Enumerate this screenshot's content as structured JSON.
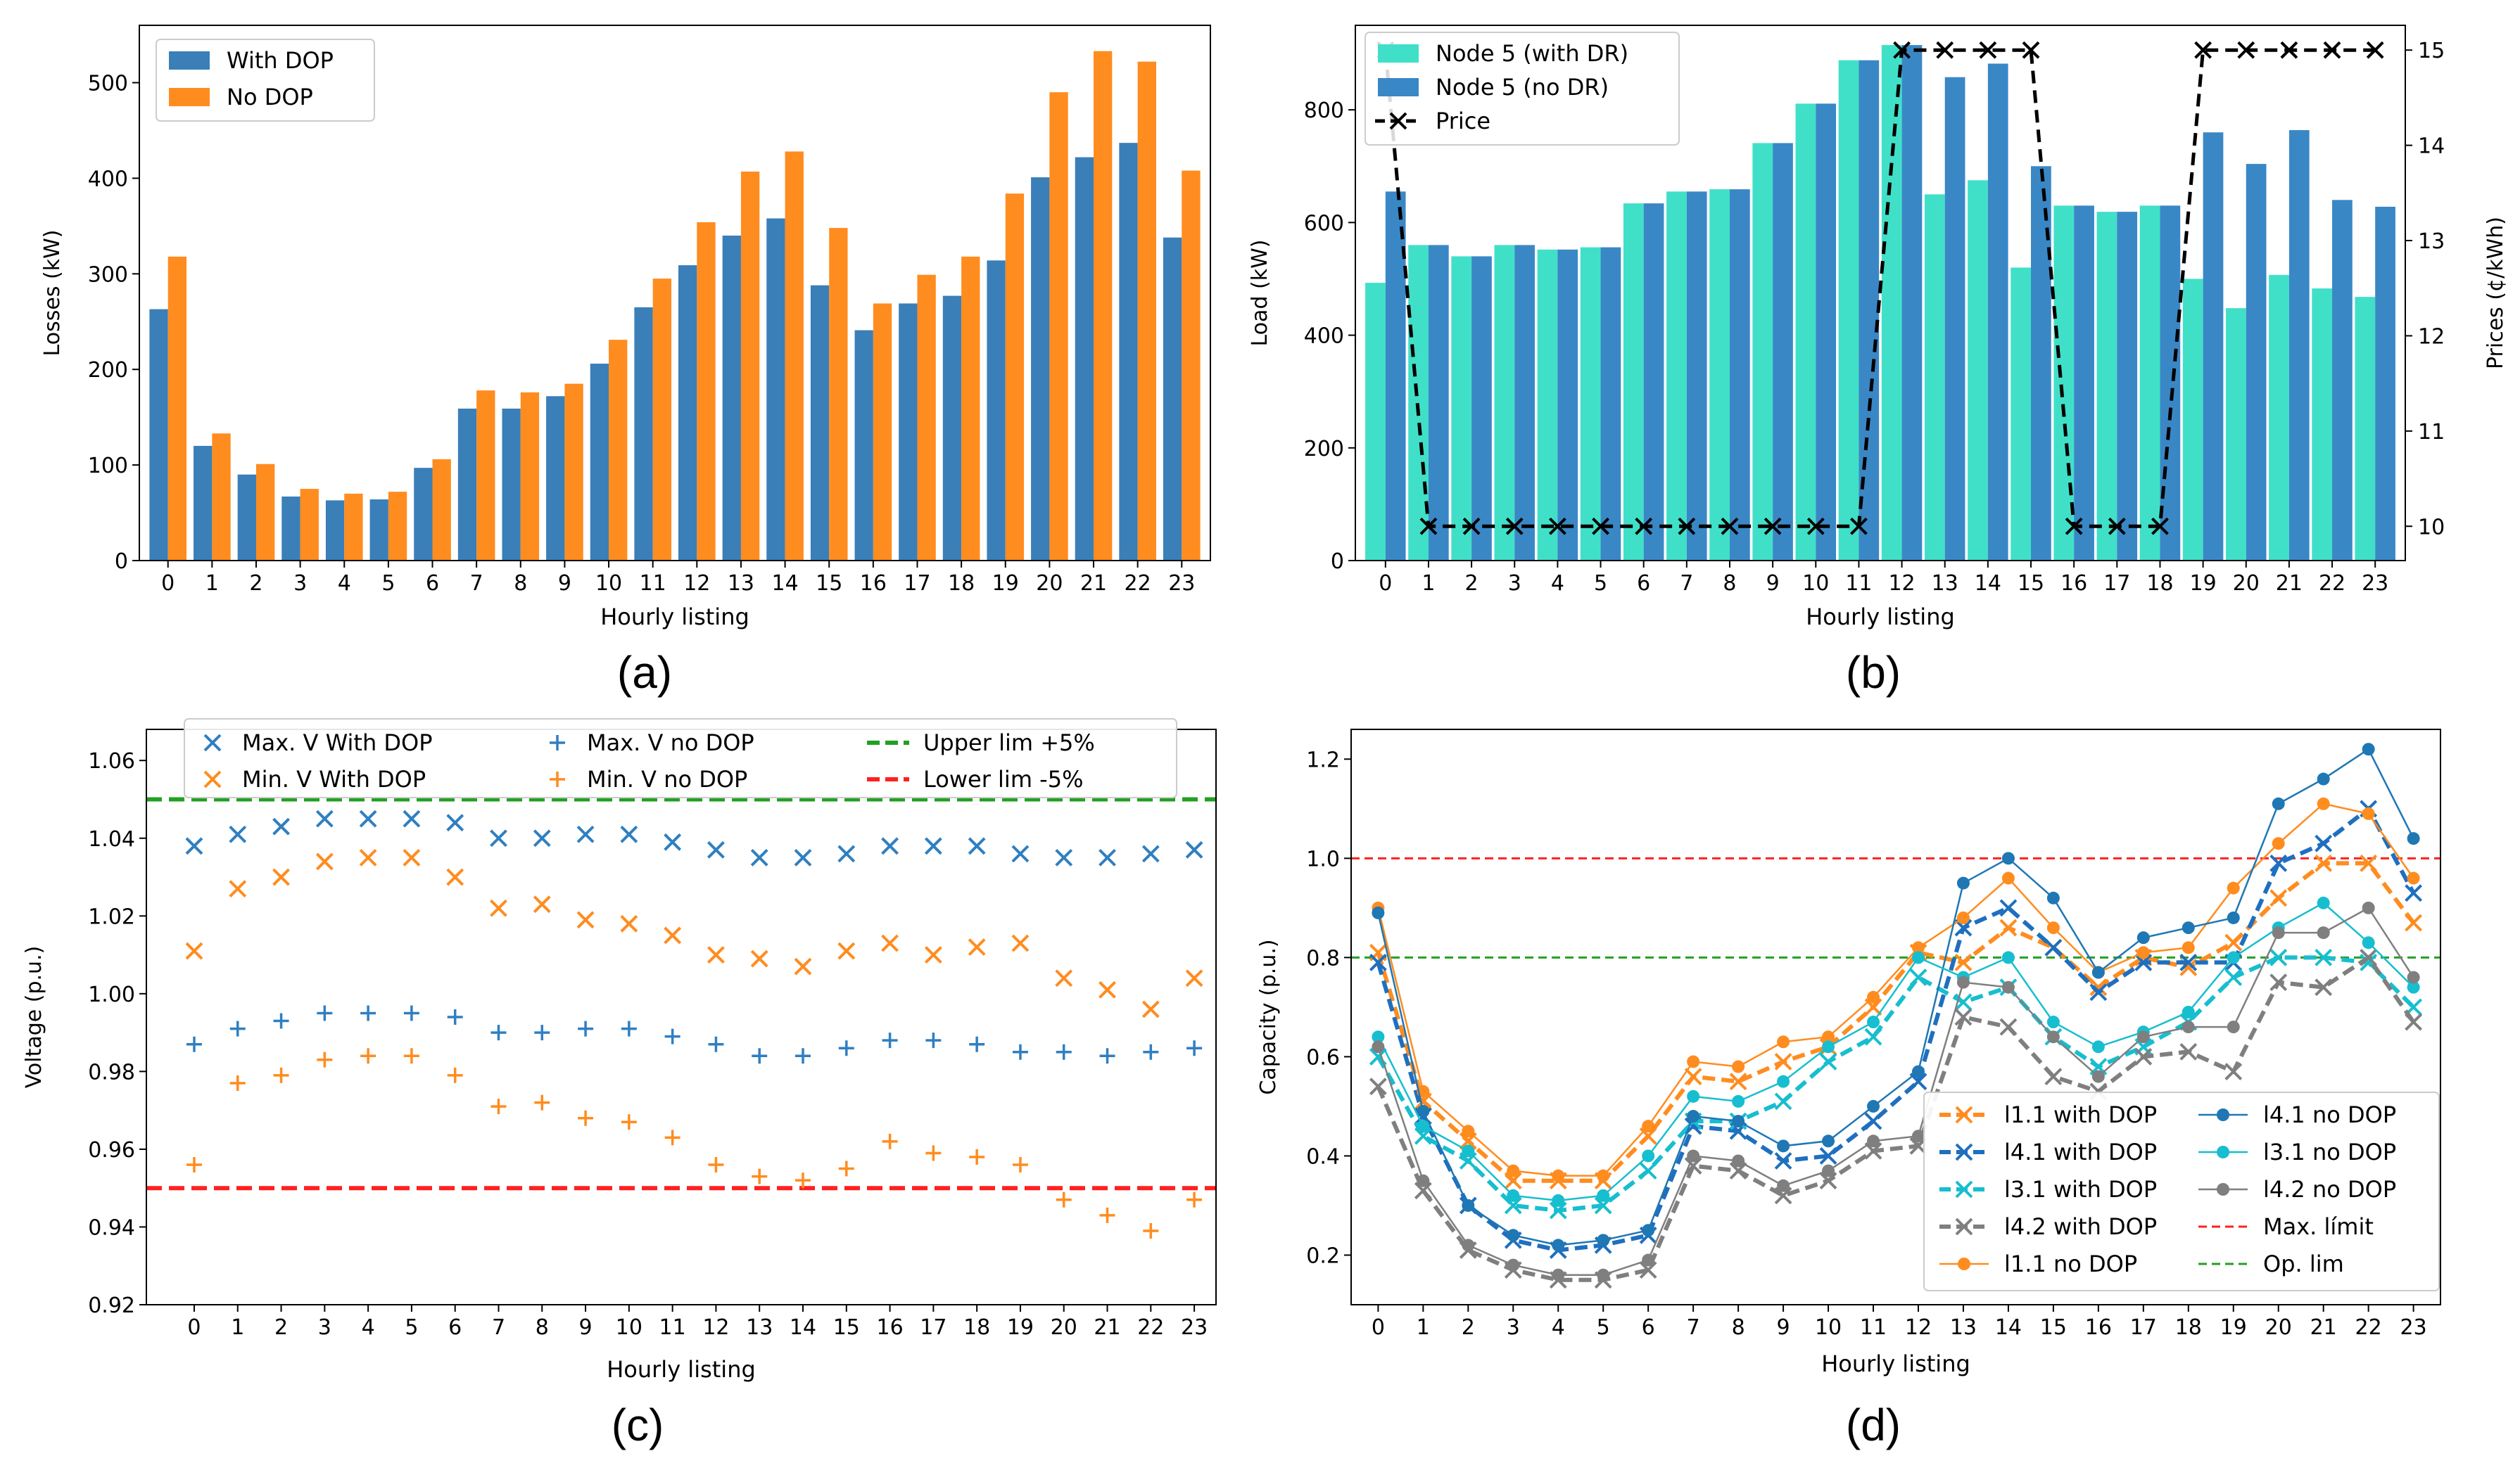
{
  "chart_data": [
    {
      "panel": "a",
      "caption": "(a)",
      "type": "bar",
      "xlabel": "Hourly listing",
      "ylabel": "Losses (kW)",
      "categories": [
        "0",
        "1",
        "2",
        "3",
        "4",
        "5",
        "6",
        "7",
        "8",
        "9",
        "10",
        "11",
        "12",
        "13",
        "14",
        "15",
        "16",
        "17",
        "18",
        "19",
        "20",
        "21",
        "22",
        "23"
      ],
      "ylim": [
        0,
        560
      ],
      "yticks": [
        0,
        100,
        200,
        300,
        400,
        500
      ],
      "legend_position": "top-left",
      "series": [
        {
          "name": "With DOP",
          "color": "#3a7fb8",
          "values": [
            263,
            120,
            90,
            67,
            63,
            64,
            97,
            159,
            159,
            172,
            206,
            265,
            309,
            340,
            358,
            288,
            241,
            269,
            277,
            314,
            401,
            422,
            437,
            338
          ]
        },
        {
          "name": "No DOP",
          "color": "#ff8c1f",
          "values": [
            318,
            133,
            101,
            75,
            70,
            72,
            106,
            178,
            176,
            185,
            231,
            295,
            354,
            407,
            428,
            348,
            269,
            299,
            318,
            384,
            490,
            533,
            522,
            408
          ]
        }
      ]
    },
    {
      "panel": "b",
      "caption": "(b)",
      "type": "bar",
      "xlabel": "Hourly listing",
      "ylabel": "Load (kW)",
      "y2label": "Prices (¢/kWh)",
      "categories": [
        "0",
        "1",
        "2",
        "3",
        "4",
        "5",
        "6",
        "7",
        "8",
        "9",
        "10",
        "11",
        "12",
        "13",
        "14",
        "15",
        "16",
        "17",
        "18",
        "19",
        "20",
        "21",
        "22",
        "23"
      ],
      "ylim": [
        0,
        950
      ],
      "yticks": [
        0,
        200,
        400,
        600,
        800
      ],
      "y2lim": [
        9.64,
        15.26
      ],
      "y2ticks": [
        10,
        11,
        12,
        13,
        14,
        15
      ],
      "legend_position": "top-left",
      "series": [
        {
          "name": "Node 5 (with DR)",
          "color": "#40e0c8",
          "values": [
            493,
            560,
            540,
            560,
            552,
            556,
            634,
            655,
            659,
            741,
            811,
            888,
            915,
            650,
            675,
            520,
            630,
            619,
            630,
            500,
            448,
            507,
            483,
            468
          ]
        },
        {
          "name": "Node 5 (no DR)",
          "color": "#3a87c6",
          "values": [
            655,
            560,
            540,
            560,
            552,
            556,
            634,
            655,
            659,
            741,
            811,
            888,
            915,
            858,
            882,
            700,
            630,
            619,
            630,
            760,
            704,
            764,
            640,
            628
          ]
        }
      ],
      "line_series": {
        "name": "Price",
        "axis": "right",
        "color": "#000000",
        "values": [
          15,
          10,
          10,
          10,
          10,
          10,
          10,
          10,
          10,
          10,
          10,
          10,
          15,
          15,
          15,
          15,
          10,
          10,
          10,
          15,
          15,
          15,
          15,
          15
        ]
      }
    },
    {
      "panel": "c",
      "caption": "(c)",
      "type": "scatter",
      "xlabel": "Hourly listing",
      "ylabel": "Voltage (p.u.)",
      "x": [
        0,
        1,
        2,
        3,
        4,
        5,
        6,
        7,
        8,
        9,
        10,
        11,
        12,
        13,
        14,
        15,
        16,
        17,
        18,
        19,
        20,
        21,
        22,
        23
      ],
      "ylim": [
        0.92,
        1.068
      ],
      "yticks": [
        "0.92",
        "0.94",
        "0.96",
        "0.98",
        "1.00",
        "1.02",
        "1.04",
        "1.06"
      ],
      "legend_position": "top",
      "series": [
        {
          "name": "Max. V With DOP",
          "marker": "x",
          "color": "#2f7fc1",
          "values": [
            1.038,
            1.041,
            1.043,
            1.045,
            1.045,
            1.045,
            1.044,
            1.04,
            1.04,
            1.041,
            1.041,
            1.039,
            1.037,
            1.035,
            1.035,
            1.036,
            1.038,
            1.038,
            1.038,
            1.036,
            1.035,
            1.035,
            1.036,
            1.037
          ]
        },
        {
          "name": "Min. V With DOP",
          "marker": "x",
          "color": "#ff8c1f",
          "values": [
            1.011,
            1.027,
            1.03,
            1.034,
            1.035,
            1.035,
            1.03,
            1.022,
            1.023,
            1.019,
            1.018,
            1.015,
            1.01,
            1.009,
            1.007,
            1.011,
            1.013,
            1.01,
            1.012,
            1.013,
            1.004,
            1.001,
            0.996,
            1.004
          ]
        },
        {
          "name": "Max. V no DOP",
          "marker": "+",
          "color": "#2f7fc1",
          "values": [
            0.987,
            0.991,
            0.993,
            0.995,
            0.995,
            0.995,
            0.994,
            0.99,
            0.99,
            0.991,
            0.991,
            0.989,
            0.987,
            0.984,
            0.984,
            0.986,
            0.988,
            0.988,
            0.987,
            0.985,
            0.985,
            0.984,
            0.985,
            0.986
          ]
        },
        {
          "name": "Min. V no DOP",
          "marker": "+",
          "color": "#ff8c1f",
          "values": [
            0.956,
            0.977,
            0.979,
            0.983,
            0.984,
            0.984,
            0.979,
            0.971,
            0.972,
            0.968,
            0.967,
            0.963,
            0.956,
            0.953,
            0.952,
            0.955,
            0.962,
            0.959,
            0.958,
            0.956,
            0.947,
            0.943,
            0.939,
            0.947
          ]
        }
      ],
      "hlines": [
        {
          "name": "Upper lim +5%",
          "value": 1.05,
          "color": "#22a022"
        },
        {
          "name": "Lower lim -5%",
          "value": 0.95,
          "color": "#ff2020"
        }
      ]
    },
    {
      "panel": "d",
      "caption": "(d)",
      "type": "line",
      "xlabel": "Hourly listing",
      "ylabel": "Capacity (p.u.)",
      "x": [
        0,
        1,
        2,
        3,
        4,
        5,
        6,
        7,
        8,
        9,
        10,
        11,
        12,
        13,
        14,
        15,
        16,
        17,
        18,
        19,
        20,
        21,
        22,
        23
      ],
      "ylim": [
        0.1,
        1.26
      ],
      "yticks": [
        "0.2",
        "0.4",
        "0.6",
        "0.8",
        "1.0",
        "1.2"
      ],
      "legend_position": "lower-right",
      "series": [
        {
          "name": "l1.1 with DOP",
          "marker": "x",
          "style": "dashed",
          "color": "#ff8c1f",
          "values": [
            0.81,
            0.51,
            0.43,
            0.35,
            0.35,
            0.35,
            0.44,
            0.56,
            0.55,
            0.59,
            0.62,
            0.7,
            0.81,
            0.79,
            0.86,
            0.82,
            0.74,
            0.8,
            0.78,
            0.83,
            0.92,
            0.99,
            0.99,
            0.87
          ]
        },
        {
          "name": "l4.1 with DOP",
          "marker": "x",
          "style": "dashed",
          "color": "#1f6fbf",
          "values": [
            0.79,
            0.48,
            0.3,
            0.23,
            0.21,
            0.22,
            0.24,
            0.46,
            0.45,
            0.39,
            0.4,
            0.47,
            0.55,
            0.86,
            0.9,
            0.82,
            0.73,
            0.79,
            0.79,
            0.79,
            0.99,
            1.03,
            1.1,
            0.93
          ]
        },
        {
          "name": "l3.1 with DOP",
          "marker": "x",
          "style": "dashed",
          "color": "#17becf",
          "values": [
            0.6,
            0.44,
            0.39,
            0.3,
            0.29,
            0.3,
            0.37,
            0.47,
            0.47,
            0.51,
            0.59,
            0.64,
            0.76,
            0.71,
            0.74,
            0.64,
            0.58,
            0.62,
            0.67,
            0.76,
            0.8,
            0.8,
            0.79,
            0.7
          ]
        },
        {
          "name": "l4.2 with DOP",
          "marker": "x",
          "style": "dashed",
          "color": "#7f7f7f",
          "values": [
            0.54,
            0.33,
            0.21,
            0.17,
            0.15,
            0.15,
            0.17,
            0.38,
            0.37,
            0.32,
            0.35,
            0.41,
            0.42,
            0.68,
            0.66,
            0.56,
            0.53,
            0.6,
            0.61,
            0.57,
            0.75,
            0.74,
            0.8,
            0.67
          ]
        },
        {
          "name": "l1.1 no DOP",
          "marker": "o",
          "style": "solid",
          "color": "#ff8c1f",
          "values": [
            0.9,
            0.53,
            0.45,
            0.37,
            0.36,
            0.36,
            0.46,
            0.59,
            0.58,
            0.63,
            0.64,
            0.72,
            0.82,
            0.88,
            0.96,
            0.86,
            0.77,
            0.81,
            0.82,
            0.94,
            1.03,
            1.11,
            1.09,
            0.96
          ]
        },
        {
          "name": "l4.1 no DOP",
          "marker": "o",
          "style": "solid",
          "color": "#1f77b4",
          "values": [
            0.89,
            0.49,
            0.3,
            0.24,
            0.22,
            0.23,
            0.25,
            0.48,
            0.47,
            0.42,
            0.43,
            0.5,
            0.57,
            0.95,
            1.0,
            0.92,
            0.77,
            0.84,
            0.86,
            0.88,
            1.11,
            1.16,
            1.22,
            1.04
          ]
        },
        {
          "name": "l3.1 no DOP",
          "marker": "o",
          "style": "solid",
          "color": "#17becf",
          "values": [
            0.64,
            0.46,
            0.41,
            0.32,
            0.31,
            0.32,
            0.4,
            0.52,
            0.51,
            0.55,
            0.62,
            0.67,
            0.8,
            0.76,
            0.8,
            0.67,
            0.62,
            0.65,
            0.69,
            0.8,
            0.86,
            0.91,
            0.83,
            0.74
          ]
        },
        {
          "name": "l4.2 no DOP",
          "marker": "o",
          "style": "solid",
          "color": "#7f7f7f",
          "values": [
            0.62,
            0.35,
            0.22,
            0.18,
            0.16,
            0.16,
            0.19,
            0.4,
            0.39,
            0.34,
            0.37,
            0.43,
            0.44,
            0.75,
            0.74,
            0.64,
            0.56,
            0.64,
            0.66,
            0.66,
            0.85,
            0.85,
            0.9,
            0.76
          ]
        }
      ],
      "hlines": [
        {
          "name": "Max. límit",
          "value": 1.0,
          "color": "#ff2020"
        },
        {
          "name": "Op. lim",
          "value": 0.8,
          "color": "#22a022"
        }
      ]
    }
  ]
}
